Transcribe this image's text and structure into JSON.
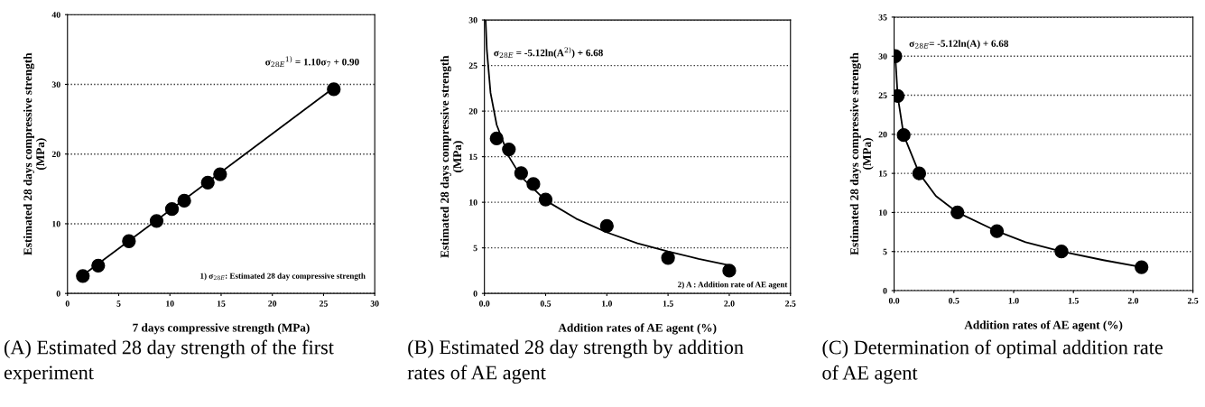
{
  "chart_data": [
    {
      "type": "scatter",
      "title": "(A) Estimated 28 day strength of the first experiment",
      "xlabel": "7 days compressive strength (MPa)",
      "ylabel": "Estimated 28 days compressive strength (MPa)",
      "xlim": [
        0,
        30
      ],
      "xticks": [
        0,
        5,
        10,
        15,
        20,
        25,
        30
      ],
      "ylim": [
        0,
        40
      ],
      "yticks": [
        0,
        10,
        20,
        30,
        40
      ],
      "grid": "y",
      "legend": false,
      "series": [
        {
          "type": "scatter",
          "marker": "circle",
          "color": "#000000",
          "x": [
            1.5,
            3,
            6,
            8.7,
            10.2,
            11.4,
            13.7,
            14.9,
            26
          ],
          "values": [
            2.5,
            4,
            7.5,
            10.4,
            12.1,
            13.3,
            15.9,
            17.1,
            29.3
          ]
        },
        {
          "type": "line",
          "marker": "none",
          "color": "#000000",
          "x": [
            1.5,
            26
          ],
          "values": [
            2.6,
            29.5
          ]
        }
      ],
      "annotations": [
        "σ$_{28E}$$^{1)}$ = 1.10σ$_{7}$ + 0.90",
        "1) σ$_{28E}$: Estimated 28 day compressive strength"
      ]
    },
    {
      "type": "scatter",
      "title": "(B) Estimated 28 day strength by addition rates of AE agent",
      "xlabel": "Addition rates of AE agent (%)",
      "ylabel": "Estimated 28 days compressive strength (MPa)",
      "xlim": [
        0,
        2.5
      ],
      "xticks": [
        {
          "value": 0,
          "label": "0.0"
        },
        {
          "value": 0.5,
          "label": "0.5"
        },
        {
          "value": 1,
          "label": "1.0"
        },
        {
          "value": 1.5,
          "label": "1.5"
        },
        {
          "value": 2,
          "label": "2.0"
        },
        {
          "value": 2.5,
          "label": "2.5"
        }
      ],
      "ylim": [
        0,
        30
      ],
      "yticks": [
        0,
        5,
        10,
        15,
        20,
        25,
        30
      ],
      "grid": "y",
      "legend": false,
      "series": [
        {
          "type": "scatter",
          "marker": "circle",
          "color": "#000000",
          "x": [
            0.1,
            0.2,
            0.3,
            0.4,
            0.5,
            1.0,
            1.5,
            2.0
          ],
          "values": [
            17,
            15.8,
            13.2,
            12,
            10.3,
            7.4,
            3.9,
            2.5
          ]
        },
        {
          "type": "line",
          "marker": "none",
          "color": "#000000",
          "x": [
            0.01,
            0.02,
            0.05,
            0.1,
            0.2,
            0.3,
            0.5,
            0.75,
            1.0,
            1.25,
            1.5,
            1.75,
            2.0
          ],
          "values": [
            30,
            26.7,
            22,
            18.5,
            15,
            12.8,
            10.2,
            8.2,
            6.7,
            5.5,
            4.6,
            3.8,
            3.1
          ]
        }
      ],
      "annotations": [
        "σ$_{28E}$ = -5.12ln(A$^{2)}$) + 6.68",
        "2) A : Addition rate of AE agent"
      ]
    },
    {
      "type": "scatter",
      "title": "(C) Determination of optimal addition rate of AE agent",
      "xlabel": "Addition rates of AE agent (%)",
      "ylabel": "Estimated 28 days compressive strength (MPa)",
      "xlim": [
        0,
        2.5
      ],
      "xticks": [
        {
          "value": 0,
          "label": "0.0"
        },
        {
          "value": 0.5,
          "label": "0.5"
        },
        {
          "value": 1,
          "label": "1.0"
        },
        {
          "value": 1.5,
          "label": "1.5"
        },
        {
          "value": 2,
          "label": "2.0"
        },
        {
          "value": 2.5,
          "label": "2.5"
        }
      ],
      "ylim": [
        0,
        35
      ],
      "yticks": [
        0,
        5,
        10,
        15,
        20,
        25,
        30,
        35
      ],
      "grid": "y",
      "legend": false,
      "series": [
        {
          "type": "scatter",
          "marker": "circle",
          "color": "#000000",
          "x": [
            0.01,
            0.03,
            0.08,
            0.21,
            0.53,
            0.86,
            1.4,
            2.07
          ],
          "values": [
            30,
            24.9,
            19.9,
            15,
            10,
            7.6,
            5,
            3
          ]
        },
        {
          "type": "line",
          "marker": "none",
          "color": "#000000",
          "x": [
            0.01,
            0.03,
            0.08,
            0.21,
            0.35,
            0.53,
            0.86,
            1.1,
            1.4,
            1.75,
            2.07
          ],
          "values": [
            30,
            24.9,
            19.9,
            15,
            12.1,
            10,
            7.6,
            6.2,
            5,
            3.9,
            3
          ]
        }
      ],
      "annotations": [
        "σ$_{28E}$= -5.12ln(A) + 6.68"
      ]
    }
  ]
}
